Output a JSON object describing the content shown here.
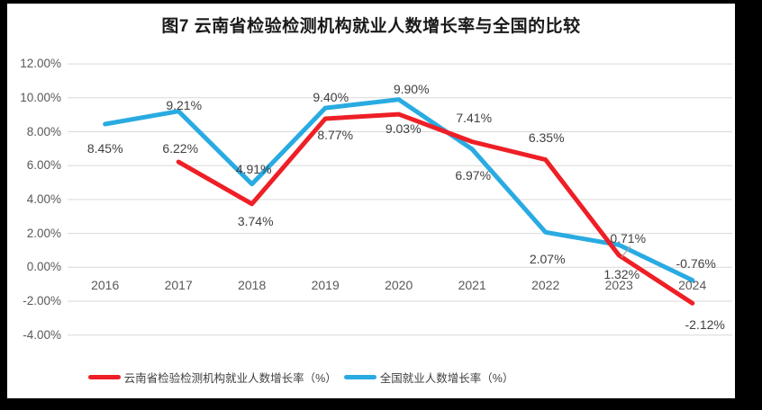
{
  "window": {
    "background_color": "#000000",
    "surface_color": "#ffffff"
  },
  "chart_data": {
    "type": "line",
    "title": "图7  云南省检验检测机构就业人数增长率与全国的比较",
    "xlabel": "",
    "ylabel": "",
    "categories": [
      "2016",
      "2017",
      "2018",
      "2019",
      "2020",
      "2021",
      "2022",
      "2023",
      "2024"
    ],
    "series": [
      {
        "id": "yunnan",
        "name": "云南省检验检测机构就业人数增长率（%）",
        "color": "#ee1f26",
        "values": [
          null,
          6.22,
          3.74,
          8.77,
          9.03,
          7.41,
          6.35,
          0.71,
          -2.12
        ],
        "labels": [
          "",
          "6.22%",
          "3.74%",
          "8.77%",
          "9.03%",
          "7.41%",
          "6.35%",
          "0.71%",
          "-2.12%"
        ],
        "label_offsets": [
          null,
          [
            2,
            -15
          ],
          [
            4,
            19
          ],
          [
            11,
            18
          ],
          [
            5,
            16
          ],
          [
            2,
            -27
          ],
          [
            1,
            -25
          ],
          [
            10,
            -19
          ],
          [
            14,
            24
          ]
        ]
      },
      {
        "id": "national",
        "name": "全国就业人数增长率（%）",
        "color": "#29abe2",
        "values": [
          8.45,
          9.21,
          4.91,
          9.4,
          9.9,
          6.97,
          2.07,
          1.32,
          -0.76
        ],
        "labels": [
          "8.45%",
          "9.21%",
          "4.91%",
          "9.40%",
          "9.90%",
          "6.97%",
          "2.07%",
          "1.32%",
          "-0.76%"
        ],
        "label_offsets": [
          [
            0,
            27
          ],
          [
            6,
            -7
          ],
          [
            2,
            -17
          ],
          [
            6,
            -12
          ],
          [
            14,
            -12
          ],
          [
            1,
            29
          ],
          [
            2,
            30
          ],
          [
            3,
            33
          ],
          [
            4,
            -19
          ]
        ]
      }
    ],
    "y_ticks": [
      {
        "label": "12.00%",
        "value": 12
      },
      {
        "label": "10.00%",
        "value": 10
      },
      {
        "label": "8.00%",
        "value": 8
      },
      {
        "label": "6.00%",
        "value": 6
      },
      {
        "label": "4.00%",
        "value": 4
      },
      {
        "label": "2.00%",
        "value": 2
      },
      {
        "label": "0.00%",
        "value": 0
      },
      {
        "label": "-2.00%",
        "value": -2
      },
      {
        "label": "-4.00%",
        "value": -4
      }
    ],
    "ylim": [
      -4,
      12
    ],
    "grid": "horizontal-only",
    "legend_position": "bottom",
    "leader_line": {
      "series_index": 0,
      "point_index": 7
    },
    "colors": {
      "gridline": "#d9d9d9",
      "axis_text": "#595959",
      "data_label_text": "#404040",
      "title_text": "#1a1a1a",
      "leader": "#a6a6a6"
    }
  }
}
